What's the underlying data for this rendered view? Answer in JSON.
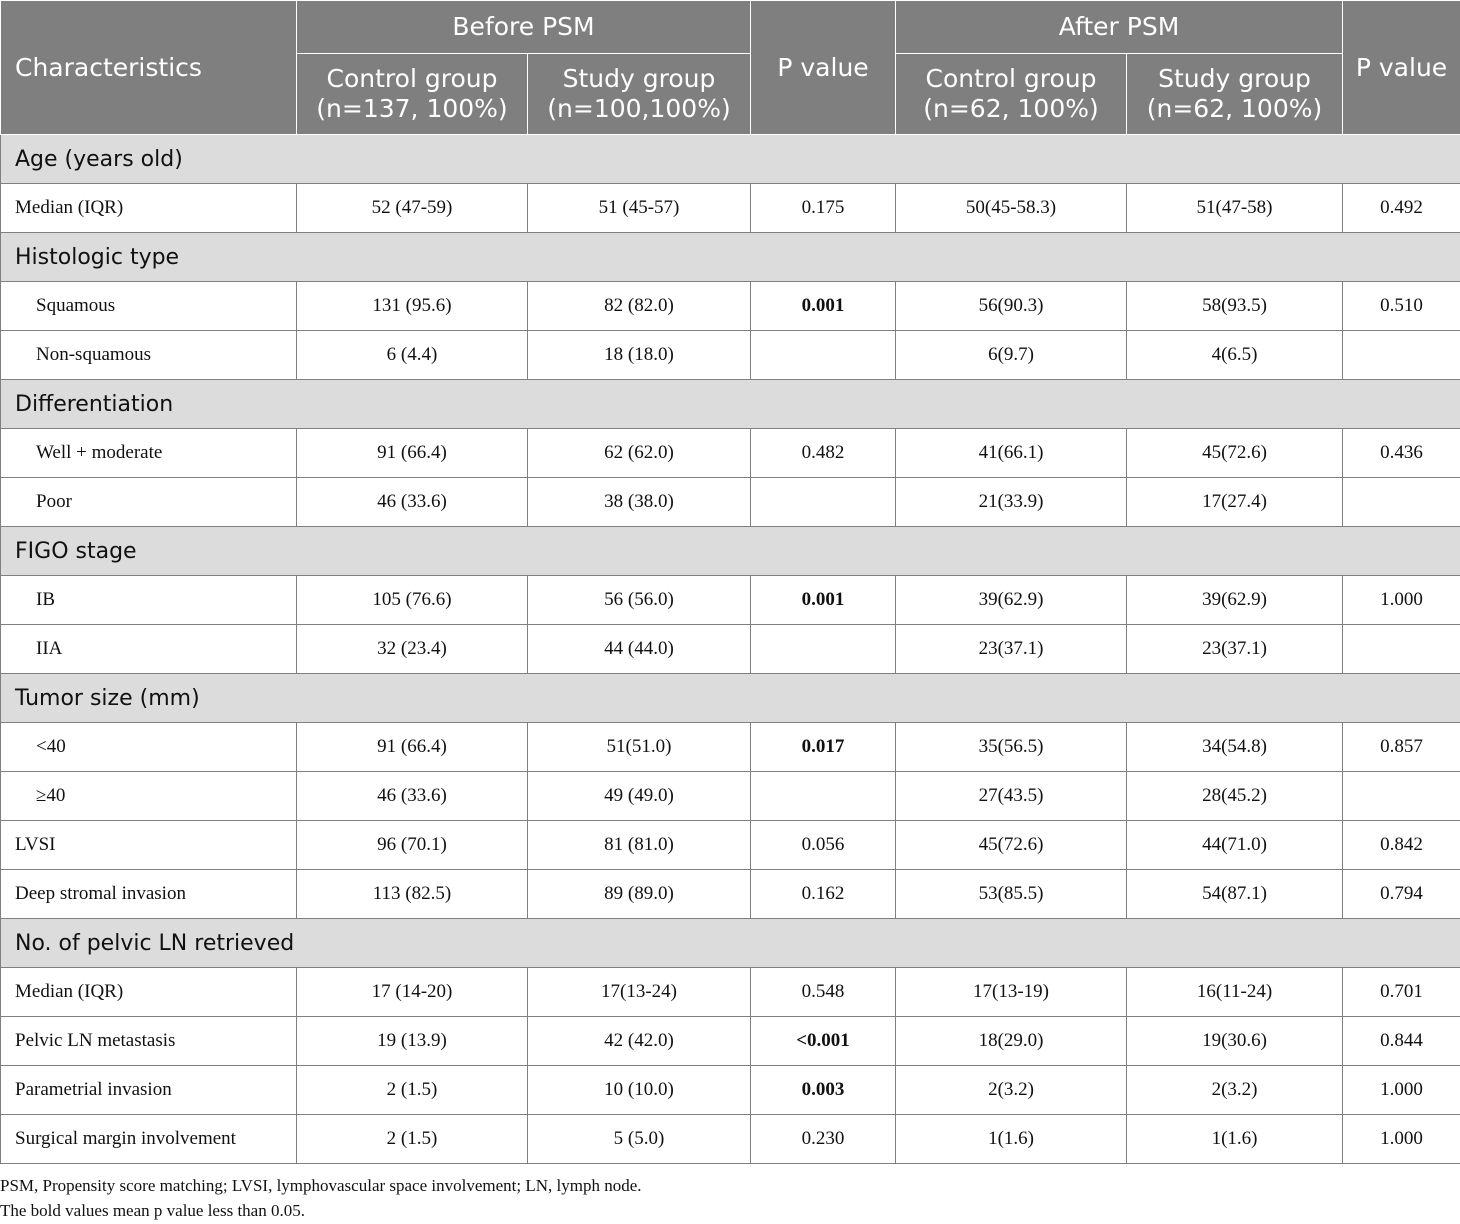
{
  "header": {
    "characteristics": "Characteristics",
    "before_psm": "Before PSM",
    "after_psm": "After PSM",
    "p_value": "P value",
    "before_control": "Control group\n(n=137, 100%)",
    "before_study": "Study group\n(n=100,100%)",
    "after_control": "Control group\n(n=62, 100%)",
    "after_study": "Study group\n(n=62, 100%)"
  },
  "rows": [
    {
      "type": "section",
      "label": "Age (years old)"
    },
    {
      "type": "row",
      "indent": false,
      "label": "Median (IQR)",
      "values": [
        "52 (47-59)",
        "51 (45-57)",
        "0.175",
        "50(45-58.3)",
        "51(47-58)",
        "0.492"
      ],
      "bold": [
        false,
        false,
        false,
        false,
        false,
        false
      ]
    },
    {
      "type": "section",
      "label": "Histologic type"
    },
    {
      "type": "row",
      "indent": true,
      "label": "Squamous",
      "values": [
        "131 (95.6)",
        "82 (82.0)",
        "0.001",
        "56(90.3)",
        "58(93.5)",
        "0.510"
      ],
      "bold": [
        false,
        false,
        true,
        false,
        false,
        false
      ]
    },
    {
      "type": "row",
      "indent": true,
      "label": "Non-squamous",
      "values": [
        "6 (4.4)",
        "18 (18.0)",
        "",
        "6(9.7)",
        "4(6.5)",
        ""
      ],
      "bold": [
        false,
        false,
        false,
        false,
        false,
        false
      ]
    },
    {
      "type": "section",
      "label": "Differentiation"
    },
    {
      "type": "row",
      "indent": true,
      "label": "Well + moderate",
      "values": [
        "91 (66.4)",
        "62 (62.0)",
        "0.482",
        "41(66.1)",
        "45(72.6)",
        "0.436"
      ],
      "bold": [
        false,
        false,
        false,
        false,
        false,
        false
      ]
    },
    {
      "type": "row",
      "indent": true,
      "label": "Poor",
      "values": [
        "46 (33.6)",
        "38 (38.0)",
        "",
        "21(33.9)",
        "17(27.4)",
        ""
      ],
      "bold": [
        false,
        false,
        false,
        false,
        false,
        false
      ]
    },
    {
      "type": "section",
      "label": "FIGO stage"
    },
    {
      "type": "row",
      "indent": true,
      "label": "IB",
      "values": [
        "105 (76.6)",
        "56 (56.0)",
        "0.001",
        "39(62.9)",
        "39(62.9)",
        "1.000"
      ],
      "bold": [
        false,
        false,
        true,
        false,
        false,
        false
      ]
    },
    {
      "type": "row",
      "indent": true,
      "label": "IIA",
      "values": [
        "32 (23.4)",
        "44 (44.0)",
        "",
        "23(37.1)",
        "23(37.1)",
        ""
      ],
      "bold": [
        false,
        false,
        false,
        false,
        false,
        false
      ]
    },
    {
      "type": "section",
      "label": "Tumor size (mm)"
    },
    {
      "type": "row",
      "indent": true,
      "label": "<40",
      "values": [
        "91 (66.4)",
        "51(51.0)",
        "0.017",
        "35(56.5)",
        "34(54.8)",
        "0.857"
      ],
      "bold": [
        false,
        false,
        true,
        false,
        false,
        false
      ]
    },
    {
      "type": "row",
      "indent": true,
      "label": "≥40",
      "values": [
        "46 (33.6)",
        "49 (49.0)",
        "",
        "27(43.5)",
        "28(45.2)",
        ""
      ],
      "bold": [
        false,
        false,
        false,
        false,
        false,
        false
      ]
    },
    {
      "type": "row",
      "indent": false,
      "label": "LVSI",
      "values": [
        "96 (70.1)",
        "81 (81.0)",
        "0.056",
        "45(72.6)",
        "44(71.0)",
        "0.842"
      ],
      "bold": [
        false,
        false,
        false,
        false,
        false,
        false
      ]
    },
    {
      "type": "row",
      "indent": false,
      "label": "Deep stromal invasion",
      "values": [
        "113 (82.5)",
        "89 (89.0)",
        "0.162",
        "53(85.5)",
        "54(87.1)",
        "0.794"
      ],
      "bold": [
        false,
        false,
        false,
        false,
        false,
        false
      ]
    },
    {
      "type": "section",
      "label": "No. of pelvic LN retrieved"
    },
    {
      "type": "row",
      "indent": false,
      "label": "Median (IQR)",
      "values": [
        "17 (14-20)",
        "17(13-24)",
        "0.548",
        "17(13-19)",
        "16(11-24)",
        "0.701"
      ],
      "bold": [
        false,
        false,
        false,
        false,
        false,
        false
      ]
    },
    {
      "type": "row",
      "indent": false,
      "label": "Pelvic LN metastasis",
      "values": [
        "19 (13.9)",
        "42 (42.0)",
        "<0.001",
        "18(29.0)",
        "19(30.6)",
        "0.844"
      ],
      "bold": [
        false,
        false,
        true,
        false,
        false,
        false
      ]
    },
    {
      "type": "row",
      "indent": false,
      "label": "Parametrial invasion",
      "values": [
        "2 (1.5)",
        "10 (10.0)",
        "0.003",
        "2(3.2)",
        "2(3.2)",
        "1.000"
      ],
      "bold": [
        false,
        false,
        true,
        false,
        false,
        false
      ]
    },
    {
      "type": "row",
      "indent": false,
      "label": "Surgical margin involvement",
      "values": [
        "2 (1.5)",
        "5 (5.0)",
        "0.230",
        "1(1.6)",
        "1(1.6)",
        "1.000"
      ],
      "bold": [
        false,
        false,
        false,
        false,
        false,
        false
      ]
    }
  ],
  "footnotes": [
    "PSM, Propensity score matching; LVSI, lymphovascular space involvement; LN, lymph node.",
    "The bold values mean p value less than 0.05."
  ]
}
